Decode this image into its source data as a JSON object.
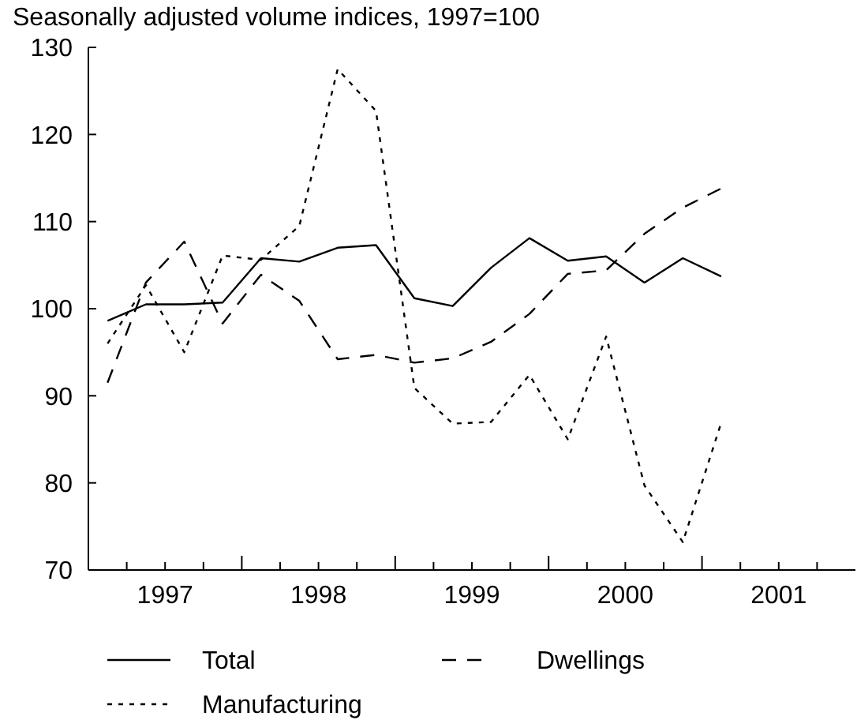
{
  "chart_data": {
    "type": "line",
    "title": "Seasonally adjusted volume indices, 1997=100",
    "x": [
      1997.125,
      1997.375,
      1997.625,
      1997.875,
      1998.125,
      1998.375,
      1998.625,
      1998.875,
      1999.125,
      1999.375,
      1999.625,
      1999.875,
      2000.125,
      2000.375,
      2000.625,
      2000.875,
      2001.125
    ],
    "series": [
      {
        "name": "Total",
        "color": "#000000",
        "line_style": "solid",
        "values": [
          98.6,
          100.5,
          100.5,
          100.7,
          105.8,
          105.4,
          107.0,
          107.3,
          101.2,
          100.3,
          104.7,
          108.1,
          105.5,
          106.0,
          103.0,
          105.8,
          103.7
        ]
      },
      {
        "name": "Dwellings",
        "color": "#000000",
        "line_style": "dashed",
        "values": [
          91.5,
          103.0,
          107.7,
          98.3,
          103.9,
          100.9,
          94.2,
          94.7,
          93.8,
          94.3,
          96.2,
          99.4,
          104.0,
          104.4,
          108.6,
          111.6,
          113.8
        ]
      },
      {
        "name": "Manufacturing",
        "color": "#000000",
        "line_style": "dotted",
        "values": [
          96.0,
          102.7,
          95.0,
          106.1,
          105.6,
          109.5,
          127.5,
          122.7,
          90.9,
          86.8,
          87.0,
          92.4,
          85.0,
          96.8,
          79.7,
          73.2,
          86.9
        ]
      }
    ],
    "ylim": [
      70,
      130
    ],
    "yticks": [
      70,
      80,
      90,
      100,
      110,
      120,
      130
    ],
    "xlim": [
      1997,
      2002
    ],
    "xticks": [
      {
        "value": 1997,
        "label": null
      },
      {
        "value": 1997.25,
        "label": null
      },
      {
        "value": 1997.5,
        "label": "1997"
      },
      {
        "value": 1997.75,
        "label": null
      },
      {
        "value": 1998,
        "label": null
      },
      {
        "value": 1998.25,
        "label": null
      },
      {
        "value": 1998.5,
        "label": "1998"
      },
      {
        "value": 1998.75,
        "label": null
      },
      {
        "value": 1999,
        "label": null
      },
      {
        "value": 1999.25,
        "label": null
      },
      {
        "value": 1999.5,
        "label": "1999"
      },
      {
        "value": 1999.75,
        "label": null
      },
      {
        "value": 2000,
        "label": null
      },
      {
        "value": 2000.25,
        "label": null
      },
      {
        "value": 2000.5,
        "label": "2000"
      },
      {
        "value": 2000.75,
        "label": null
      },
      {
        "value": 2001,
        "label": null
      },
      {
        "value": 2001.25,
        "label": null
      },
      {
        "value": 2001.5,
        "label": "2001"
      },
      {
        "value": 2001.75,
        "label": null
      }
    ],
    "grid": false,
    "legend": "bottom"
  }
}
